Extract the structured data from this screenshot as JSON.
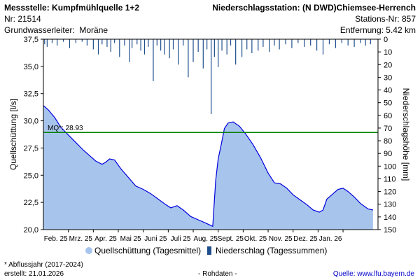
{
  "header": {
    "station_title": "Messstelle: Kumpfmühlquelle 1+2",
    "station_nr": "Nr: 21514",
    "aquifer_label": "Grundwasserleiter:",
    "aquifer_value": "Moräne",
    "precip_title": "Niederschlagsstation: (N DWD)Chiemsee-Herrench",
    "precip_nr": "Stations-Nr: 857",
    "distance": "Entfernung: 5.42 km"
  },
  "chart_data": {
    "type": "area",
    "y_label": "Quellschüttung [l/s]",
    "y2_label": "Niederschlagshöhe [mm]",
    "ylim": [
      20.0,
      37.5
    ],
    "y_ticks": [
      20.0,
      22.5,
      25.0,
      27.5,
      30.0,
      32.5,
      35.0,
      37.5
    ],
    "y_tick_labels": [
      "20,0",
      "22,5",
      "25,0",
      "27,5",
      "30,0",
      "32,5",
      "35,0",
      "37,5"
    ],
    "y2lim": [
      0,
      150
    ],
    "y2_ticks": [
      0,
      10,
      20,
      30,
      40,
      50,
      60,
      70,
      80,
      90,
      100,
      110,
      120,
      130,
      140,
      150
    ],
    "x_tick_labels": [
      "Feb. 25",
      "Mrz. 25",
      "Apr. 25",
      "Mai 25",
      "Juni 25",
      "Juli 25",
      "Aug. 25",
      "Sept. 25",
      "Okt. 25",
      "Nov. 25",
      "Dez. 25",
      "Jan. 26"
    ],
    "x_tick_months": [
      1,
      2,
      3,
      4,
      5,
      6,
      7,
      8,
      9,
      10,
      11,
      12
    ],
    "mq": {
      "label": "MQ*: 28.93",
      "value": 28.93,
      "color": "#008000"
    },
    "discharge_color": "#a7c4ec",
    "discharge_line_color": "#0000dd",
    "precip_color": "#1f4e8c",
    "discharge_series": [
      [
        0.0,
        31.4
      ],
      [
        0.2,
        31.0
      ],
      [
        0.45,
        30.3
      ],
      [
        0.7,
        29.4
      ],
      [
        1.0,
        28.7
      ],
      [
        1.3,
        28.0
      ],
      [
        1.6,
        27.3
      ],
      [
        1.85,
        26.8
      ],
      [
        2.1,
        26.3
      ],
      [
        2.35,
        26.0
      ],
      [
        2.5,
        26.2
      ],
      [
        2.65,
        26.5
      ],
      [
        2.85,
        26.4
      ],
      [
        3.1,
        25.6
      ],
      [
        3.4,
        24.8
      ],
      [
        3.7,
        24.0
      ],
      [
        4.0,
        23.7
      ],
      [
        4.3,
        23.3
      ],
      [
        4.6,
        22.8
      ],
      [
        4.9,
        22.3
      ],
      [
        5.1,
        22.0
      ],
      [
        5.35,
        22.2
      ],
      [
        5.6,
        21.8
      ],
      [
        5.9,
        21.2
      ],
      [
        6.2,
        20.9
      ],
      [
        6.5,
        20.6
      ],
      [
        6.78,
        20.3
      ],
      [
        6.9,
        24.5
      ],
      [
        7.0,
        26.5
      ],
      [
        7.12,
        27.8
      ],
      [
        7.25,
        29.3
      ],
      [
        7.4,
        29.8
      ],
      [
        7.6,
        29.9
      ],
      [
        7.85,
        29.5
      ],
      [
        8.1,
        28.8
      ],
      [
        8.4,
        27.8
      ],
      [
        8.7,
        26.6
      ],
      [
        9.0,
        25.2
      ],
      [
        9.25,
        24.3
      ],
      [
        9.5,
        24.2
      ],
      [
        9.75,
        23.8
      ],
      [
        10.0,
        23.2
      ],
      [
        10.3,
        22.7
      ],
      [
        10.55,
        22.3
      ],
      [
        10.8,
        21.8
      ],
      [
        11.05,
        21.6
      ],
      [
        11.2,
        21.8
      ],
      [
        11.35,
        22.8
      ],
      [
        11.55,
        23.2
      ],
      [
        11.8,
        23.7
      ],
      [
        12.0,
        23.8
      ],
      [
        12.2,
        23.5
      ],
      [
        12.45,
        23.0
      ],
      [
        12.7,
        22.4
      ],
      [
        13.0,
        21.9
      ],
      [
        13.2,
        21.8
      ]
    ],
    "precip_series": [
      [
        0.05,
        4
      ],
      [
        0.15,
        6
      ],
      [
        0.35,
        3
      ],
      [
        0.55,
        5
      ],
      [
        0.8,
        2
      ],
      [
        1.05,
        7
      ],
      [
        1.3,
        3
      ],
      [
        1.55,
        2
      ],
      [
        1.75,
        5
      ],
      [
        2.0,
        8
      ],
      [
        2.2,
        12
      ],
      [
        2.35,
        4
      ],
      [
        2.55,
        6
      ],
      [
        2.7,
        10
      ],
      [
        2.85,
        3
      ],
      [
        3.05,
        14
      ],
      [
        3.25,
        5
      ],
      [
        3.45,
        18
      ],
      [
        3.55,
        7
      ],
      [
        3.75,
        4
      ],
      [
        3.9,
        9
      ],
      [
        4.05,
        12
      ],
      [
        4.2,
        6
      ],
      [
        4.4,
        33
      ],
      [
        4.55,
        5
      ],
      [
        4.7,
        9
      ],
      [
        4.85,
        12
      ],
      [
        5.05,
        15
      ],
      [
        5.2,
        8
      ],
      [
        5.4,
        20
      ],
      [
        5.6,
        5
      ],
      [
        5.8,
        30
      ],
      [
        6.0,
        18
      ],
      [
        6.2,
        10
      ],
      [
        6.4,
        23
      ],
      [
        6.55,
        8
      ],
      [
        6.72,
        59
      ],
      [
        6.85,
        14
      ],
      [
        7.0,
        22
      ],
      [
        7.15,
        9
      ],
      [
        7.35,
        12
      ],
      [
        7.5,
        5
      ],
      [
        7.7,
        20
      ],
      [
        7.95,
        14
      ],
      [
        8.15,
        8
      ],
      [
        8.35,
        11
      ],
      [
        8.6,
        9
      ],
      [
        8.8,
        6
      ],
      [
        9.05,
        10
      ],
      [
        9.25,
        5
      ],
      [
        9.45,
        8
      ],
      [
        9.7,
        4
      ],
      [
        9.95,
        7
      ],
      [
        10.2,
        3
      ],
      [
        10.45,
        6
      ],
      [
        10.7,
        5
      ],
      [
        10.95,
        9
      ],
      [
        11.2,
        12
      ],
      [
        11.45,
        4
      ],
      [
        11.7,
        7
      ],
      [
        11.95,
        3
      ],
      [
        12.2,
        5
      ],
      [
        12.45,
        6
      ],
      [
        12.7,
        3
      ],
      [
        12.9,
        5
      ],
      [
        13.1,
        4
      ]
    ]
  },
  "legend": {
    "discharge": "Quellschüttung (Tagesmittel)",
    "precip": "Niederschlag (Tagessummen)"
  },
  "footer": {
    "note": "* Abflussjahr (2017-2024)",
    "created": "erstellt:  21.01.2026",
    "raw": "- Rohdaten -",
    "source_label": "Quelle:",
    "source_link": "www.lfu.bayern.de"
  }
}
